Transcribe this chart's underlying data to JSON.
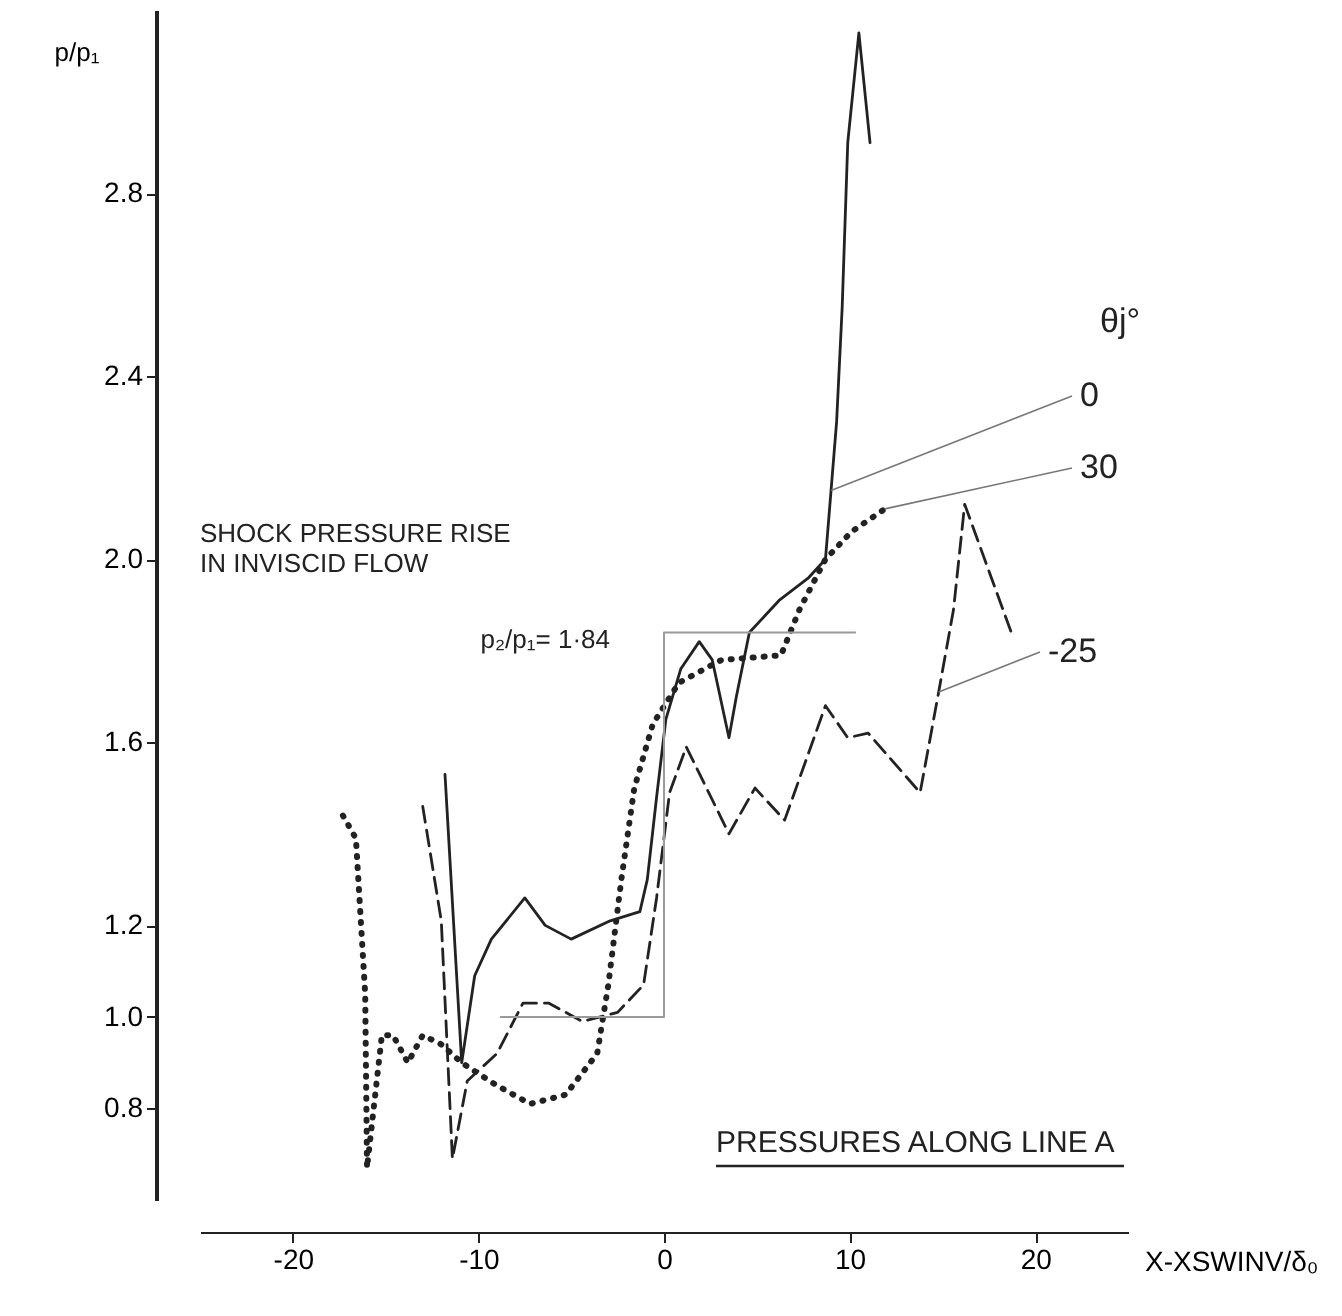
{
  "chart_data": {
    "type": "line",
    "title": "PRESSURES ALONG LINE A",
    "xlabel": "X-XSWINV/δ₀",
    "ylabel": "p/p₁",
    "legend_title": "θj°",
    "xlim": [
      -25,
      25
    ],
    "xticks": [
      -20,
      -10,
      0,
      10,
      20
    ],
    "ylim": [
      0.6,
      3.2
    ],
    "yticks": [
      0.8,
      {
        "value": 1.0,
        "label": "1.0"
      },
      1.2,
      1.6,
      {
        "value": 2.0,
        "label": "2.0"
      },
      2.4,
      2.8
    ],
    "grid": false,
    "marker": "none",
    "series": [
      {
        "name": "0",
        "color": "#222222",
        "line_style": "solid",
        "x": [
          -11.8,
          -10.9,
          -10.2,
          -9.3,
          -7.5,
          -6.4,
          -5.0,
          -2.9,
          -1.3,
          -0.9,
          -0.4,
          0.1,
          0.9,
          1.9,
          2.6,
          3.5,
          3.9,
          4.6,
          6.2,
          7.8,
          8.7,
          9.0,
          9.3,
          9.6,
          9.9,
          10.5,
          11.1
        ],
        "values": [
          1.53,
          0.9,
          1.09,
          1.17,
          1.26,
          1.2,
          1.17,
          1.21,
          1.23,
          1.3,
          1.48,
          1.65,
          1.76,
          1.82,
          1.78,
          1.61,
          1.7,
          1.84,
          1.91,
          1.96,
          2.0,
          2.15,
          2.3,
          2.55,
          2.91,
          3.15,
          2.91
        ]
      },
      {
        "name": "30",
        "color": "#222222",
        "line_style": "dotted",
        "x": [
          -17.3,
          -16.6,
          -16.1,
          -16.0,
          -15.2,
          -14.6,
          -13.8,
          -13.0,
          -12.0,
          -10.9,
          -9.0,
          -7.2,
          -5.3,
          -3.6,
          -3.0,
          -2.3,
          -1.6,
          -0.6,
          0.8,
          3.1,
          6.3,
          7.3,
          8.7,
          10.1,
          11.9
        ],
        "values": [
          1.44,
          1.39,
          1.05,
          0.67,
          0.96,
          0.96,
          0.9,
          0.96,
          0.94,
          0.9,
          0.85,
          0.81,
          0.83,
          0.92,
          1.07,
          1.3,
          1.5,
          1.64,
          1.73,
          1.78,
          1.79,
          1.89,
          2.0,
          2.06,
          2.11
        ]
      },
      {
        "name": "-25",
        "color": "#222222",
        "line_style": "dashed",
        "x": [
          -13.0,
          -12.0,
          -11.4,
          -10.6,
          -9.0,
          -7.6,
          -6.2,
          -4.4,
          -2.5,
          -1.1,
          -0.4,
          0.3,
          1.2,
          3.5,
          4.9,
          6.5,
          8.7,
          9.9,
          11.0,
          13.8,
          14.8,
          15.6,
          16.2,
          18.8
        ],
        "values": [
          1.46,
          1.21,
          0.69,
          0.86,
          0.92,
          1.03,
          1.03,
          0.99,
          1.01,
          1.07,
          1.26,
          1.49,
          1.59,
          1.4,
          1.5,
          1.43,
          1.68,
          1.61,
          1.62,
          1.49,
          1.71,
          1.89,
          2.12,
          1.83
        ]
      },
      {
        "color": "#9a9a9a",
        "line_style": "solid",
        "x": [
          -8.8,
          0,
          0,
          10.3
        ],
        "values": [
          1.0,
          1.0,
          1.84,
          1.84
        ]
      }
    ],
    "annotations": [
      "SHOCK PRESSURE RISE\nIN INVISCID FLOW",
      "p₂/p₁= 1·84"
    ]
  }
}
